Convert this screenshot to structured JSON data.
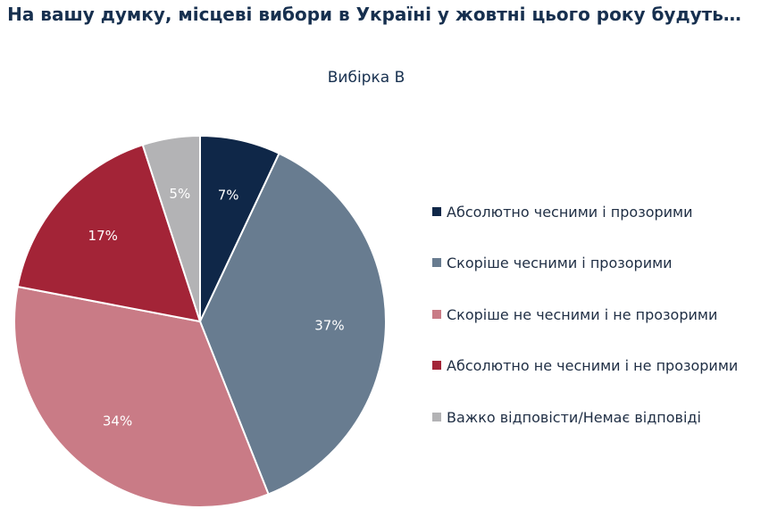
{
  "chart_data": {
    "type": "pie",
    "title": "На вашу думку, місцеві вибори в Україні у жовтні цього року будуть…",
    "subtitle": "Вибірка B",
    "categories": [
      "Абсолютно чесними і прозорими",
      "Скоріше чесними і прозорими",
      "Скоріше не чесними і не прозорими",
      "Абсолютно не чесними і не прозорими",
      "Важко відповісти/Немає відповіді"
    ],
    "values": [
      7,
      37,
      34,
      17,
      5
    ],
    "value_labels": [
      "7%",
      "37%",
      "34%",
      "17%",
      "5%"
    ],
    "colors": [
      "#0f2748",
      "#687c90",
      "#c97b86",
      "#a32437",
      "#b3b3b5"
    ],
    "label_colors": [
      "#ffffff",
      "#ffffff",
      "#ffffff",
      "#ffffff",
      "#ffffff"
    ],
    "legend_position": "right"
  }
}
